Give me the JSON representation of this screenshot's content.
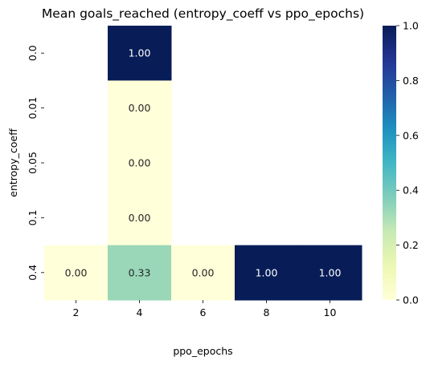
{
  "chart_data": {
    "type": "heatmap",
    "title": "Mean goals_reached (entropy_coeff vs ppo_epochs)",
    "xlabel": "ppo_epochs",
    "ylabel": "entropy_coeff",
    "x_categories": [
      "2",
      "4",
      "6",
      "8",
      "10"
    ],
    "y_categories": [
      "0.0",
      "0.01",
      "0.05",
      "0.1",
      "0.4"
    ],
    "values": [
      [
        null,
        1.0,
        null,
        null,
        null
      ],
      [
        null,
        0.0,
        null,
        null,
        null
      ],
      [
        null,
        0.0,
        null,
        null,
        null
      ],
      [
        null,
        0.0,
        null,
        null,
        null
      ],
      [
        0.0,
        0.33,
        0.0,
        1.0,
        1.0
      ]
    ],
    "cell_labels": [
      [
        null,
        "1.00",
        null,
        null,
        null
      ],
      [
        null,
        "0.00",
        null,
        null,
        null
      ],
      [
        null,
        "0.00",
        null,
        null,
        null
      ],
      [
        null,
        "0.00",
        null,
        null,
        null
      ],
      [
        "0.00",
        "0.33",
        "0.00",
        "1.00",
        "1.00"
      ]
    ],
    "colormap": "YlGnBu",
    "vmin": 0,
    "vmax": 1,
    "colorbar_ticks": [
      "0.0",
      "0.2",
      "0.4",
      "0.6",
      "0.8",
      "1.0"
    ],
    "colorbar_tick_values": [
      0,
      0.2,
      0.4,
      0.6,
      0.8,
      1.0
    ],
    "grid": false,
    "legend": "colorbar-right"
  }
}
